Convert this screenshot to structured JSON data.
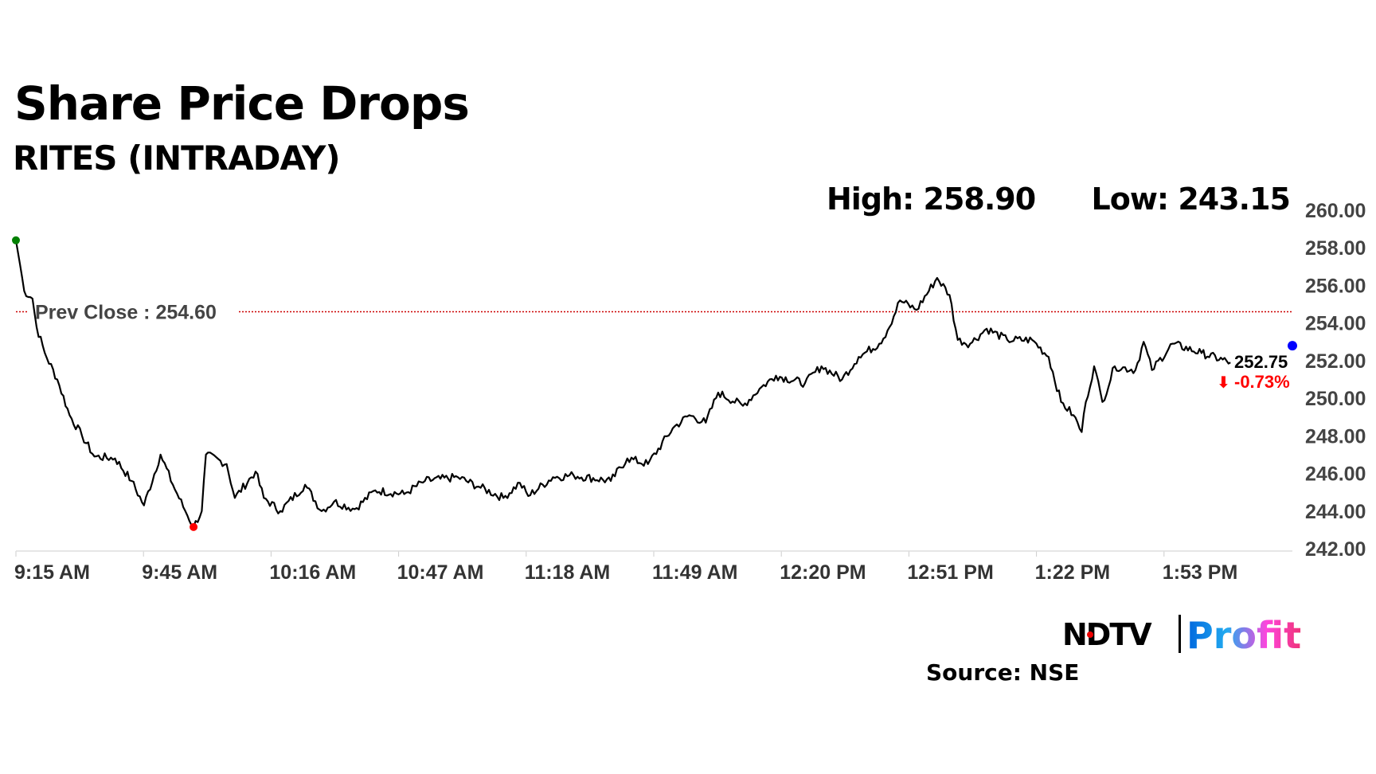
{
  "header": {
    "title": "Share Price Drops",
    "subtitle": "RITES (INTRADAY)"
  },
  "stats": {
    "high": "High: 258.90",
    "low": "Low: 243.15"
  },
  "footer": {
    "source": "Source: NSE",
    "logo_text": "NDTV | Profit"
  },
  "colors": {
    "line": "#000000",
    "prev_close": "#cc0000",
    "start_dot": "#008000",
    "low_dot": "#ff0000",
    "end_dot": "#0000ff",
    "change_negative": "#ff0000",
    "axis_text": "#444444"
  },
  "chart_data": {
    "type": "line",
    "title": "RITES (INTRADAY)",
    "xlabel": "",
    "ylabel": "",
    "ylim": [
      242,
      260
    ],
    "y_ticks": [
      "242.00",
      "244.00",
      "246.00",
      "248.00",
      "250.00",
      "252.00",
      "254.00",
      "256.00",
      "258.00",
      "260.00"
    ],
    "x_ticks": [
      "9:15 AM",
      "9:45 AM",
      "10:16 AM",
      "10:47 AM",
      "11:18 AM",
      "11:49 AM",
      "12:20 PM",
      "12:51 PM",
      "1:22 PM",
      "1:53 PM"
    ],
    "x_range": [
      "09:15",
      "14:24"
    ],
    "grid": false,
    "prev_close": {
      "label": "Prev Close : 254.60",
      "value": 254.6
    },
    "last": {
      "price": "252.75",
      "change": "-0.73%",
      "direction": "down"
    },
    "series": [
      {
        "x": [
          "09:15",
          "09:16",
          "09:17",
          "09:19",
          "09:20",
          "09:22",
          "09:25",
          "09:28",
          "09:31",
          "09:34",
          "09:39",
          "09:43",
          "09:46",
          "09:50",
          "09:53",
          "09:56",
          "09:58",
          "10:00",
          "10:01",
          "10:06",
          "10:08",
          "10:13",
          "10:15",
          "10:19",
          "10:25",
          "10:29",
          "10:32",
          "10:37",
          "10:42",
          "10:49",
          "10:54",
          "11:02",
          "11:07",
          "11:13",
          "11:17",
          "11:19",
          "11:25",
          "11:30",
          "11:39",
          "11:43",
          "11:48",
          "11:54",
          "11:58",
          "12:02",
          "12:05",
          "12:11",
          "12:15",
          "12:19",
          "12:26",
          "12:30",
          "12:35",
          "12:39",
          "12:44",
          "12:46",
          "12:49",
          "12:53",
          "12:58",
          "13:01",
          "13:03",
          "13:06",
          "13:10",
          "13:15",
          "13:21",
          "13:25",
          "13:28",
          "13:31",
          "13:33",
          "13:34",
          "13:36",
          "13:38",
          "13:41",
          "13:46",
          "13:48",
          "13:50",
          "13:55",
          "14:02",
          "14:09"
        ],
        "y": [
          258.4,
          257.1,
          255.7,
          255.3,
          253.8,
          252.4,
          251.0,
          249.1,
          248.0,
          246.9,
          246.8,
          245.6,
          244.3,
          247.0,
          245.4,
          244.0,
          243.15,
          244.0,
          247.0,
          246.5,
          244.7,
          246.1,
          244.7,
          244.0,
          245.4,
          244.0,
          244.5,
          244.1,
          245.1,
          244.9,
          245.6,
          245.8,
          245.3,
          244.7,
          245.5,
          244.8,
          245.8,
          245.9,
          245.6,
          246.8,
          246.5,
          248.4,
          249.1,
          248.7,
          250.3,
          249.6,
          250.5,
          251.2,
          250.8,
          251.7,
          251.0,
          252.2,
          252.9,
          253.6,
          255.2,
          254.7,
          256.4,
          255.5,
          253.1,
          252.9,
          253.7,
          253.1,
          253.1,
          252.2,
          249.8,
          249.1,
          248.2,
          249.8,
          251.7,
          249.8,
          251.7,
          251.5,
          253.0,
          251.5,
          252.9,
          252.4,
          251.9
        ]
      }
    ]
  }
}
